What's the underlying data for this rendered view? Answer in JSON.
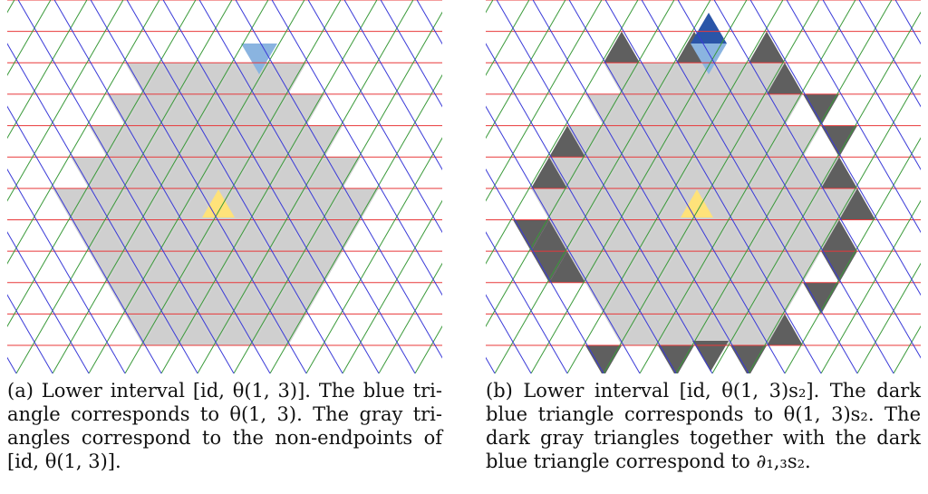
{
  "figures": [
    {
      "id": "a",
      "caption_lines": [
        "(a) Lower interval [id, θ(1, 3)].  The blue tri-",
        "angle corresponds to θ(1, 3).  The gray tri-",
        "angles correspond to the non-endpoints of",
        "[id, θ(1, 3)]."
      ],
      "highlight": {
        "identity_triangle": "yellow",
        "endpoint_triangle": "light-blue",
        "interval_region": "light-gray"
      }
    },
    {
      "id": "b",
      "caption_lines": [
        "(b) Lower interval [id, θ(1, 3)s₂].  The dark",
        "blue triangle corresponds to θ(1, 3)s₂.  The",
        "dark gray triangles together with the dark",
        "blue triangle correspond to ∂₁,₃s₂."
      ],
      "highlight": {
        "identity_triangle": "yellow",
        "endpoint_triangle": "dark-blue",
        "boundary_triangles": "dark-gray",
        "interval_region": "light-gray"
      }
    }
  ],
  "colors": {
    "line_red": "#e8383a",
    "line_green": "#3a9a3a",
    "line_blue": "#3a3ad8",
    "region_gray": "#cfcfcf",
    "boundary_dark_gray": "#5f5f5f",
    "identity_yellow": "#ffe27a",
    "endpoint_light_blue": "#8ab4e0",
    "endpoint_dark_blue": "#2a55a8"
  }
}
